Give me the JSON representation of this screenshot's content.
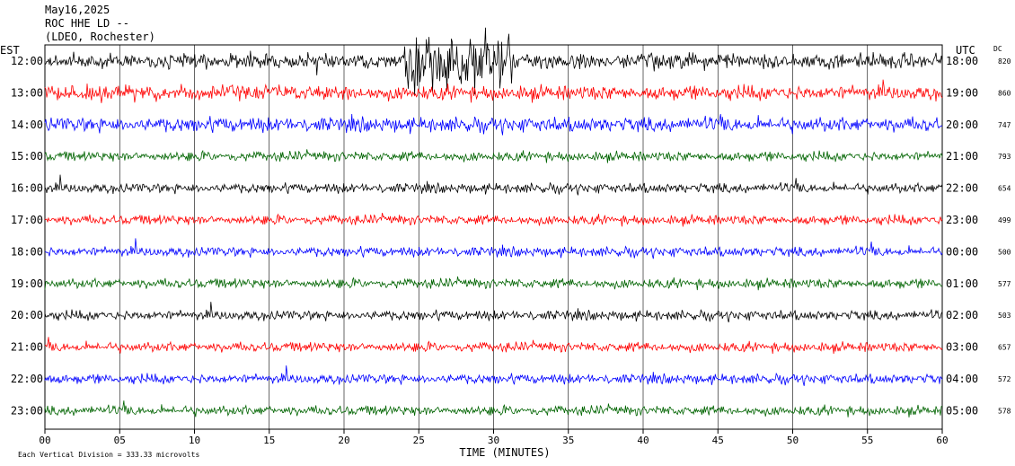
{
  "header": {
    "date": "May16,2025",
    "station": "ROC HHE LD --",
    "network": "(LDEO, Rochester)"
  },
  "chart_data": {
    "type": "line",
    "left_axis_label": "EST",
    "right_axis_label": "UTC",
    "dc_label": "DC",
    "xlabel": "TIME (MINUTES)",
    "xlim": [
      0,
      60
    ],
    "x_ticks": [
      "00",
      "05",
      "10",
      "15",
      "20",
      "25",
      "30",
      "35",
      "40",
      "45",
      "50",
      "55",
      "60"
    ],
    "footer": "Each Vertical Division = 333.33 microvolts",
    "trace_colors": [
      "#000000",
      "#ff0000",
      "#0000ff",
      "#006400"
    ],
    "traces": [
      {
        "est": "12:00",
        "utc": "18:00",
        "dc": "820"
      },
      {
        "est": "13:00",
        "utc": "19:00",
        "dc": "860"
      },
      {
        "est": "14:00",
        "utc": "20:00",
        "dc": "747"
      },
      {
        "est": "15:00",
        "utc": "21:00",
        "dc": "793"
      },
      {
        "est": "16:00",
        "utc": "22:00",
        "dc": "654"
      },
      {
        "est": "17:00",
        "utc": "23:00",
        "dc": "499"
      },
      {
        "est": "18:00",
        "utc": "00:00",
        "dc": "500"
      },
      {
        "est": "19:00",
        "utc": "01:00",
        "dc": "577"
      },
      {
        "est": "20:00",
        "utc": "02:00",
        "dc": "503"
      },
      {
        "est": "21:00",
        "utc": "03:00",
        "dc": "657"
      },
      {
        "est": "22:00",
        "utc": "04:00",
        "dc": "572"
      },
      {
        "est": "23:00",
        "utc": "05:00",
        "dc": "578"
      }
    ],
    "grid": true
  }
}
